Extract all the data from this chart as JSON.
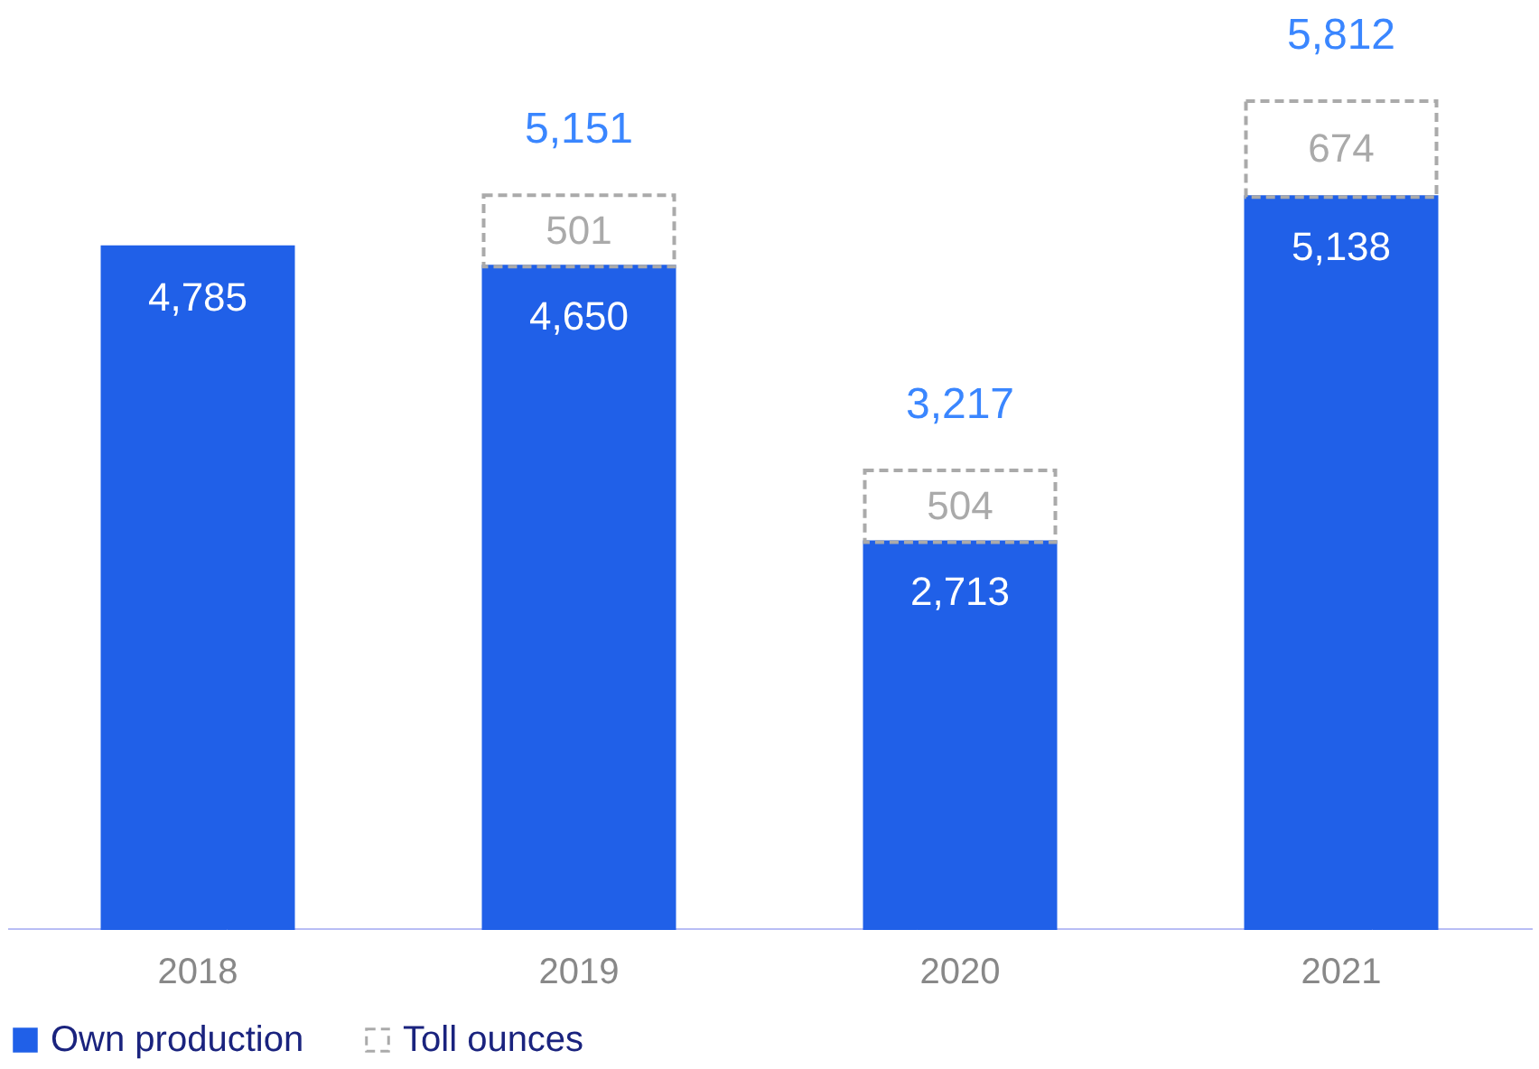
{
  "chart_data": {
    "type": "bar",
    "stacked": true,
    "categories": [
      "2018",
      "2019",
      "2020",
      "2021"
    ],
    "series": [
      {
        "name": "Own production",
        "color": "#2060e8",
        "values": [
          4785,
          4650,
          2713,
          5138
        ],
        "value_labels": [
          "4,785",
          "4,650",
          "2,713",
          "5,138"
        ]
      },
      {
        "name": "Toll ounces",
        "color": "#aaaaaa",
        "line_style": "dashed",
        "values": [
          null,
          501,
          504,
          674
        ],
        "value_labels": [
          null,
          "501",
          "504",
          "674"
        ]
      }
    ],
    "totals": [
      null,
      "5,151",
      "3,217",
      "5,812"
    ],
    "legend": "bottom",
    "grid": false
  }
}
